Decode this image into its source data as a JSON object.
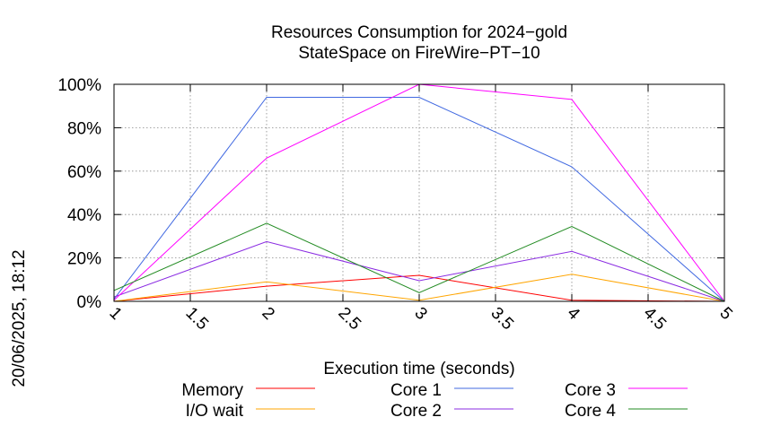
{
  "chart_data": {
    "type": "line",
    "title_lines": [
      "Resources Consumption for 2024−gold",
      "StateSpace on FireWire−PT−10"
    ],
    "xlabel": "Execution time (seconds)",
    "ylabel": "",
    "side_stamp": "20/06/2025, 18:12",
    "xlim": [
      1,
      5
    ],
    "ylim": [
      0,
      100
    ],
    "x_ticks": [
      "1",
      "1.5",
      "2",
      "2.5",
      "3",
      "3.5",
      "4",
      "4.5",
      "5"
    ],
    "y_ticks": [
      "0%",
      "20%",
      "40%",
      "60%",
      "80%",
      "100%"
    ],
    "grid": true,
    "x": [
      1,
      2,
      3,
      4,
      5
    ],
    "series": [
      {
        "name": "Memory",
        "color": "#ff0000",
        "values": [
          0,
          7,
          12,
          0.5,
          0
        ]
      },
      {
        "name": "I/O wait",
        "color": "#ffa500",
        "values": [
          0,
          9,
          0.5,
          12.5,
          0
        ]
      },
      {
        "name": "Core 1",
        "color": "#4169e1",
        "values": [
          1,
          94,
          94,
          62,
          0
        ]
      },
      {
        "name": "Core 2",
        "color": "#8a2be2",
        "values": [
          2,
          27.5,
          9.5,
          23,
          0
        ]
      },
      {
        "name": "Core 3",
        "color": "#ff00ff",
        "values": [
          0.5,
          66,
          100,
          93,
          0
        ]
      },
      {
        "name": "Core 4",
        "color": "#228b22",
        "values": [
          5,
          36,
          4,
          34.5,
          0
        ]
      }
    ]
  }
}
